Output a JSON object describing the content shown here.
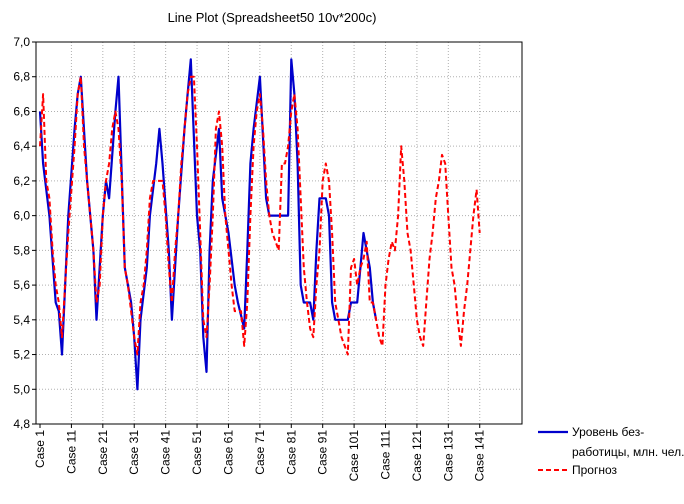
{
  "chart_data": {
    "type": "line",
    "title": "Line Plot (Spreadsheet50 10v*200c)",
    "xlabel": "",
    "ylabel": "",
    "ylim": [
      4.8,
      7.0
    ],
    "yticks": [
      "4,8",
      "5,0",
      "5,2",
      "5,4",
      "5,6",
      "5,8",
      "6,0",
      "6,2",
      "6,4",
      "6,6",
      "6,8",
      "7,0"
    ],
    "xlim": [
      1,
      150
    ],
    "xticks": [
      "Case 1",
      "Case 11",
      "Case 21",
      "Case 31",
      "Case 41",
      "Case 51",
      "Case 61",
      "Case 71",
      "Case 81",
      "Case 91",
      "Case 101",
      "Case 111",
      "Case 121",
      "Case 131",
      "Case 141"
    ],
    "grid": true,
    "legend_position": "bottom-right",
    "series": [
      {
        "name": "Уровень без-работицы, млн. чел.",
        "color": "#0000cc",
        "style": "solid",
        "points": [
          [
            1,
            6.6
          ],
          [
            2,
            6.3
          ],
          [
            4,
            6.0
          ],
          [
            6,
            5.5
          ],
          [
            7,
            5.45
          ],
          [
            8,
            5.2
          ],
          [
            10,
            6.0
          ],
          [
            12,
            6.5
          ],
          [
            13,
            6.7
          ],
          [
            14,
            6.8
          ],
          [
            16,
            6.2
          ],
          [
            18,
            5.8
          ],
          [
            19,
            5.4
          ],
          [
            21,
            6.0
          ],
          [
            22,
            6.2
          ],
          [
            23,
            6.1
          ],
          [
            25,
            6.6
          ],
          [
            26,
            6.8
          ],
          [
            28,
            5.7
          ],
          [
            30,
            5.5
          ],
          [
            31,
            5.3
          ],
          [
            32,
            5.0
          ],
          [
            33,
            5.4
          ],
          [
            35,
            5.7
          ],
          [
            36,
            6.0
          ],
          [
            38,
            6.3
          ],
          [
            39,
            6.5
          ],
          [
            40,
            6.3
          ],
          [
            42,
            5.8
          ],
          [
            43,
            5.4
          ],
          [
            45,
            6.0
          ],
          [
            47,
            6.5
          ],
          [
            48,
            6.7
          ],
          [
            49,
            6.9
          ],
          [
            51,
            6.0
          ],
          [
            52,
            5.8
          ],
          [
            53,
            5.3
          ],
          [
            54,
            5.1
          ],
          [
            55,
            5.8
          ],
          [
            56,
            6.2
          ],
          [
            58,
            6.5
          ],
          [
            59,
            6.1
          ],
          [
            61,
            5.9
          ],
          [
            63,
            5.6
          ],
          [
            64,
            5.5
          ],
          [
            66,
            5.35
          ],
          [
            67,
            5.8
          ],
          [
            68,
            6.3
          ],
          [
            69,
            6.5
          ],
          [
            71,
            6.8
          ],
          [
            73,
            6.1
          ],
          [
            74,
            6.0
          ],
          [
            76,
            6.0
          ],
          [
            78,
            6.0
          ],
          [
            80,
            6.0
          ],
          [
            81,
            6.9
          ],
          [
            82,
            6.7
          ],
          [
            83,
            6.3
          ],
          [
            84,
            5.6
          ],
          [
            85,
            5.5
          ],
          [
            86,
            5.5
          ],
          [
            87,
            5.5
          ],
          [
            88,
            5.4
          ],
          [
            89,
            5.8
          ],
          [
            90,
            6.1
          ],
          [
            92,
            6.1
          ],
          [
            93,
            6.0
          ],
          [
            94,
            5.5
          ],
          [
            95,
            5.4
          ],
          [
            97,
            5.4
          ],
          [
            99,
            5.4
          ],
          [
            100,
            5.5
          ],
          [
            102,
            5.5
          ],
          [
            103,
            5.7
          ],
          [
            104,
            5.9
          ],
          [
            106,
            5.7
          ],
          [
            107,
            5.5
          ],
          [
            108,
            5.4
          ]
        ]
      },
      {
        "name": "Прогноз",
        "color": "#ff0000",
        "style": "dashed",
        "points": [
          [
            1,
            6.4
          ],
          [
            2,
            6.7
          ],
          [
            3,
            6.2
          ],
          [
            4,
            6.1
          ],
          [
            5,
            5.8
          ],
          [
            6,
            5.6
          ],
          [
            7,
            5.5
          ],
          [
            8,
            5.3
          ],
          [
            9,
            5.6
          ],
          [
            10,
            5.9
          ],
          [
            12,
            6.4
          ],
          [
            13,
            6.7
          ],
          [
            14,
            6.8
          ],
          [
            15,
            6.4
          ],
          [
            16,
            6.2
          ],
          [
            17,
            6.0
          ],
          [
            18,
            5.8
          ],
          [
            19,
            5.5
          ],
          [
            20,
            5.6
          ],
          [
            21,
            6.0
          ],
          [
            22,
            6.2
          ],
          [
            23,
            6.3
          ],
          [
            24,
            6.5
          ],
          [
            25,
            6.6
          ],
          [
            26,
            6.5
          ],
          [
            27,
            6.2
          ],
          [
            28,
            5.7
          ],
          [
            29,
            5.6
          ],
          [
            30,
            5.45
          ],
          [
            31,
            5.3
          ],
          [
            32,
            5.2
          ],
          [
            33,
            5.5
          ],
          [
            34,
            5.6
          ],
          [
            35,
            5.8
          ],
          [
            36,
            6.1
          ],
          [
            37,
            6.2
          ],
          [
            38,
            6.2
          ],
          [
            39,
            6.2
          ],
          [
            40,
            6.2
          ],
          [
            41,
            6.0
          ],
          [
            42,
            5.7
          ],
          [
            43,
            5.5
          ],
          [
            44,
            5.8
          ],
          [
            45,
            6.0
          ],
          [
            46,
            6.3
          ],
          [
            47,
            6.5
          ],
          [
            48,
            6.7
          ],
          [
            49,
            6.8
          ],
          [
            50,
            6.8
          ],
          [
            51,
            6.4
          ],
          [
            52,
            5.9
          ],
          [
            53,
            5.4
          ],
          [
            54,
            5.3
          ],
          [
            55,
            5.6
          ],
          [
            56,
            6.0
          ],
          [
            57,
            6.5
          ],
          [
            58,
            6.6
          ],
          [
            59,
            6.4
          ],
          [
            60,
            6.0
          ],
          [
            61,
            5.8
          ],
          [
            62,
            5.6
          ],
          [
            63,
            5.45
          ],
          [
            64,
            5.45
          ],
          [
            65,
            5.45
          ],
          [
            66,
            5.25
          ],
          [
            67,
            5.5
          ],
          [
            68,
            6.0
          ],
          [
            69,
            6.4
          ],
          [
            70,
            6.6
          ],
          [
            71,
            6.7
          ],
          [
            72,
            6.5
          ],
          [
            73,
            6.2
          ],
          [
            74,
            6.0
          ],
          [
            75,
            5.9
          ],
          [
            76,
            5.85
          ],
          [
            77,
            5.8
          ],
          [
            78,
            6.3
          ],
          [
            79,
            6.3
          ],
          [
            80,
            6.4
          ],
          [
            81,
            6.6
          ],
          [
            82,
            6.7
          ],
          [
            83,
            6.5
          ],
          [
            84,
            6.1
          ],
          [
            85,
            5.7
          ],
          [
            86,
            5.5
          ],
          [
            87,
            5.35
          ],
          [
            88,
            5.3
          ],
          [
            89,
            5.6
          ],
          [
            90,
            5.8
          ],
          [
            91,
            6.2
          ],
          [
            92,
            6.3
          ],
          [
            93,
            6.2
          ],
          [
            94,
            5.9
          ],
          [
            95,
            5.5
          ],
          [
            96,
            5.4
          ],
          [
            97,
            5.3
          ],
          [
            98,
            5.25
          ],
          [
            99,
            5.2
          ],
          [
            100,
            5.7
          ],
          [
            101,
            5.75
          ],
          [
            102,
            5.6
          ],
          [
            103,
            5.7
          ],
          [
            104,
            5.75
          ],
          [
            105,
            5.85
          ],
          [
            106,
            5.5
          ],
          [
            107,
            5.5
          ],
          [
            108,
            5.4
          ],
          [
            109,
            5.3
          ],
          [
            110,
            5.25
          ],
          [
            111,
            5.6
          ],
          [
            112,
            5.75
          ],
          [
            113,
            5.85
          ],
          [
            114,
            5.8
          ],
          [
            115,
            6.0
          ],
          [
            116,
            6.4
          ],
          [
            117,
            6.2
          ],
          [
            118,
            5.9
          ],
          [
            119,
            5.8
          ],
          [
            120,
            5.6
          ],
          [
            121,
            5.4
          ],
          [
            122,
            5.3
          ],
          [
            123,
            5.25
          ],
          [
            124,
            5.5
          ],
          [
            125,
            5.75
          ],
          [
            126,
            5.9
          ],
          [
            127,
            6.1
          ],
          [
            128,
            6.2
          ],
          [
            129,
            6.35
          ],
          [
            130,
            6.3
          ],
          [
            131,
            6.0
          ],
          [
            132,
            5.7
          ],
          [
            133,
            5.6
          ],
          [
            134,
            5.4
          ],
          [
            135,
            5.25
          ],
          [
            136,
            5.45
          ],
          [
            137,
            5.6
          ],
          [
            138,
            5.8
          ],
          [
            139,
            6.0
          ],
          [
            140,
            6.15
          ],
          [
            141,
            5.9
          ]
        ]
      }
    ]
  }
}
